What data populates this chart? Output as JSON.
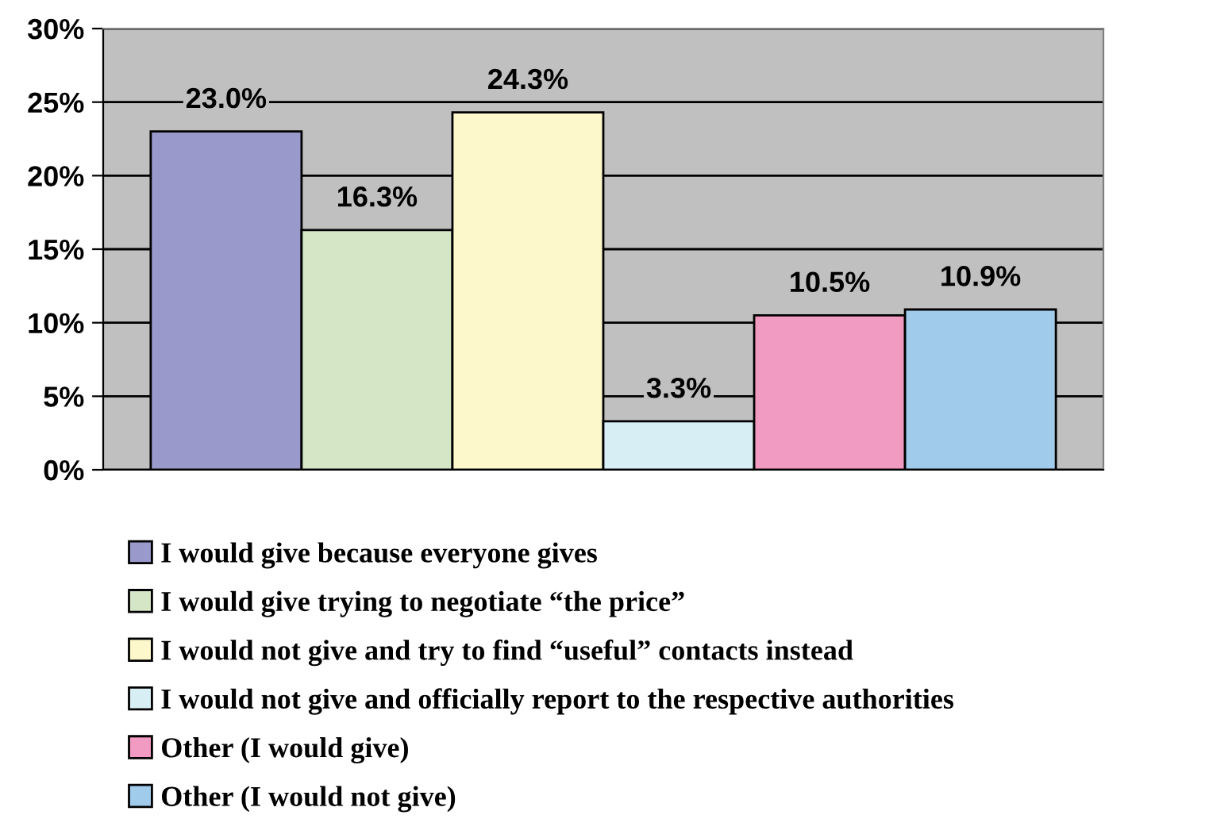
{
  "chart_data": {
    "type": "bar",
    "categories": [
      null
    ],
    "series": [
      {
        "name": "I would give because everyone gives",
        "color": "#9999cc",
        "values": [
          23.0
        ],
        "value_labels": [
          "23.0%"
        ]
      },
      {
        "name": "I would give trying to negotiate “the price”",
        "color": "#d4e6c6",
        "values": [
          16.3
        ],
        "value_labels": [
          "16.3%"
        ]
      },
      {
        "name": "I would not give and try to find “useful” contacts instead",
        "color": "#fdf8cc",
        "values": [
          24.3
        ],
        "value_labels": [
          "24.3%"
        ]
      },
      {
        "name": "I would not give and officially report to the respective authorities",
        "color": "#d8eef5",
        "values": [
          3.3
        ],
        "value_labels": [
          "3.3%"
        ]
      },
      {
        "name": "Other (I would give)",
        "color": "#f29bc2",
        "values": [
          10.5
        ],
        "value_labels": [
          "10.5%"
        ]
      },
      {
        "name": "Other (I would not give)",
        "color": "#a0cbeb",
        "values": [
          10.9
        ],
        "value_labels": [
          "10.9%"
        ]
      }
    ],
    "ylim": [
      0,
      30
    ],
    "yticks": [
      {
        "value": 0,
        "label": "0%"
      },
      {
        "value": 5,
        "label": "5%"
      },
      {
        "value": 10,
        "label": "10%"
      },
      {
        "value": 15,
        "label": "15%"
      },
      {
        "value": 20,
        "label": "20%"
      },
      {
        "value": 25,
        "label": "25%"
      },
      {
        "value": 30,
        "label": "30%"
      }
    ],
    "grid": "y",
    "legend": "bottom"
  }
}
